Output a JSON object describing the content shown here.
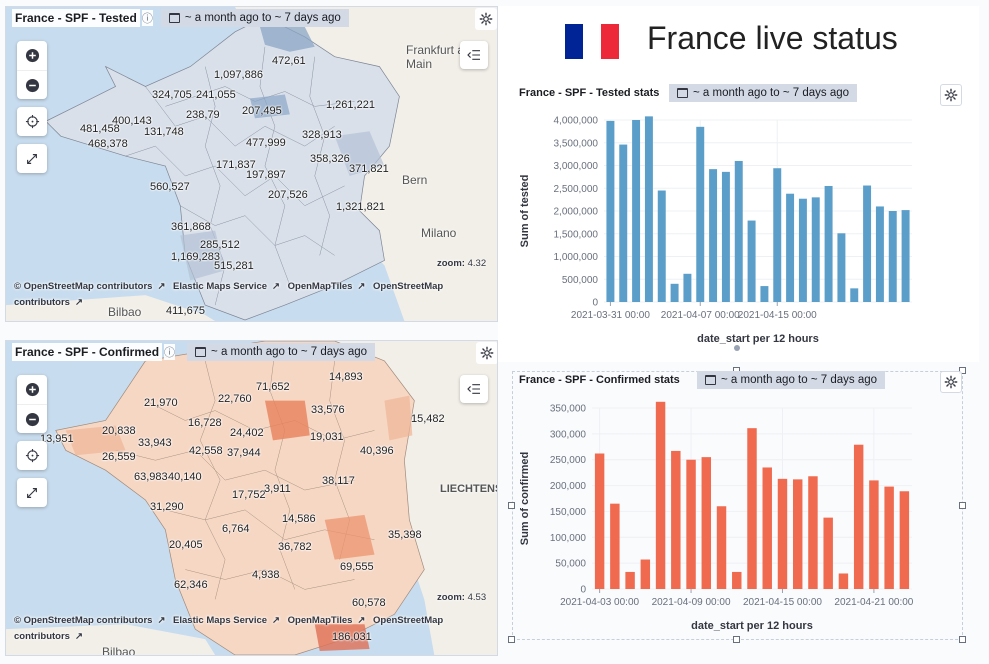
{
  "dashboard": {
    "title": "France live status",
    "flag_colors": [
      "#002395",
      "#ffffff",
      "#ed2939"
    ]
  },
  "map_tested": {
    "title": "France - SPF - Tested",
    "time_range": "~ a month ago to ~ 7 days ago",
    "zoom_label": "zoom:",
    "zoom_value": "4.32",
    "attribution": [
      "© OpenStreetMap contributors",
      "Elastic Maps Service",
      "OpenMapTiles",
      "OpenStreetMap contributors"
    ],
    "cities": [
      "Frankfurt am Main",
      "Bern",
      "Milano",
      "Bilbao"
    ],
    "region_values": [
      "1,097,886",
      "472,61",
      "324,705",
      "241,055",
      "400,143",
      "481,458",
      "468,378",
      "131,748",
      "238,79",
      "207,495",
      "560,527",
      "361,868",
      "1,169,283",
      "285,512",
      "515,281",
      "477,999",
      "358,326",
      "371,821",
      "411,675",
      "171,837",
      "197,897",
      "207,526",
      "328,913",
      "1,261,221",
      "1,321,821"
    ]
  },
  "map_confirmed": {
    "title": "France - SPF - Confirmed",
    "time_range": "~ a month ago to ~ 7 days ago",
    "zoom_label": "zoom:",
    "zoom_value": "4.53",
    "attribution": [
      "© OpenStreetMap contributors",
      "Elastic Maps Service",
      "OpenMapTiles",
      "OpenStreetMap contributors"
    ],
    "cities": [
      "LIECHTENS",
      "Bilbao"
    ],
    "region_values": [
      "21,970",
      "71,652",
      "14,893",
      "33,576",
      "13,951",
      "20,838",
      "33,943",
      "26,559",
      "42,558",
      "37,944",
      "63,983",
      "40,140",
      "31,290",
      "20,405",
      "14,586",
      "36,782",
      "62,346",
      "4,938",
      "35,398",
      "69,555",
      "186,031",
      "15,482",
      "16,728",
      "22,760",
      "19,031",
      "17,752",
      "60,578",
      "38,117",
      "40,396",
      "24,402",
      "3,911",
      "6,764"
    ]
  },
  "chart_tested": {
    "title": "France - SPF - Tested stats",
    "time_range": "~ a month ago to ~ 7 days ago",
    "color": "#5b9ec9"
  },
  "chart_confirmed": {
    "title": "France - SPF - Confirmed stats",
    "time_range": "~ a month ago to ~ 7 days ago",
    "color": "#f06a4f"
  },
  "chart_data": [
    {
      "type": "bar",
      "title": "France - SPF - Tested stats",
      "xlabel": "date_start per 12 hours",
      "ylabel": "Sum of tested",
      "ylim": [
        0,
        4000000
      ],
      "yticks": [
        "0",
        "500,000",
        "1,000,000",
        "1,500,000",
        "2,000,000",
        "2,500,000",
        "3,000,000",
        "3,500,000",
        "4,000,000"
      ],
      "xticks": [
        "2021-03-31 00:00",
        "2021-04-07 00:00",
        "2021-04-15 00:00"
      ],
      "values": [
        3980000,
        3460000,
        4000000,
        4080000,
        2450000,
        400000,
        620000,
        3850000,
        2920000,
        2860000,
        3100000,
        1790000,
        350000,
        2940000,
        2380000,
        2270000,
        2300000,
        2550000,
        1510000,
        300000,
        2560000,
        2100000,
        2000000,
        2020000
      ],
      "grid": true
    },
    {
      "type": "bar",
      "title": "France - SPF - Confirmed stats",
      "xlabel": "date_start per 12 hours",
      "ylabel": "Sum of confirmed",
      "ylim": [
        0,
        350000
      ],
      "yticks": [
        "0",
        "50,000",
        "100,000",
        "150,000",
        "200,000",
        "250,000",
        "300,000",
        "350,000"
      ],
      "xticks": [
        "2021-04-03 00:00",
        "2021-04-09 00:00",
        "2021-04-15 00:00",
        "2021-04-21 00:00"
      ],
      "values": [
        262000,
        165000,
        33000,
        57000,
        362000,
        267000,
        250000,
        255000,
        160000,
        33000,
        311000,
        235000,
        213000,
        212000,
        218000,
        138000,
        30000,
        279000,
        210000,
        198000,
        189000
      ],
      "grid": true
    }
  ]
}
